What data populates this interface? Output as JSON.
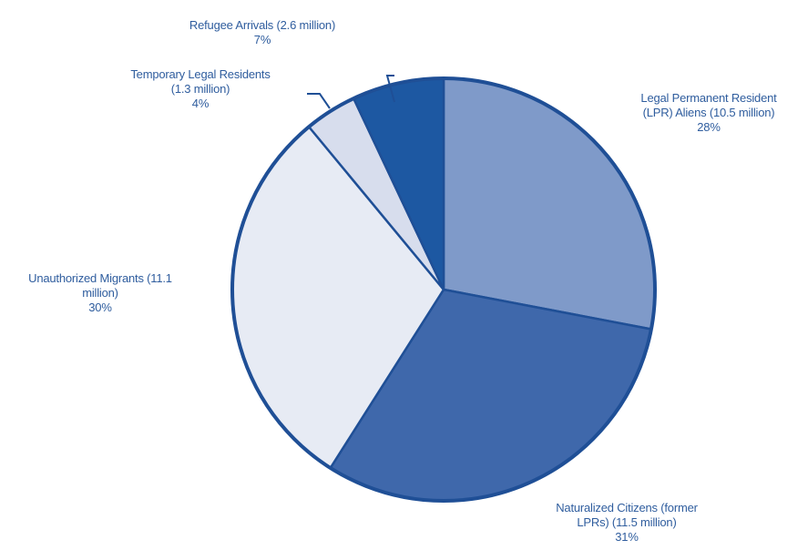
{
  "chart_data": {
    "type": "pie",
    "start_angle_deg": 0,
    "direction": "clockwise",
    "slices": [
      {
        "label": "Legal Permanent Resident (LPR) Aliens (10.5 million)",
        "amount_millions": 10.5,
        "percent": 28,
        "percent_label": "28%",
        "color": "#7f9ac9"
      },
      {
        "label": "Naturalized Citizens (former LPRs) (11.5 million)",
        "amount_millions": 11.5,
        "percent": 31,
        "percent_label": "31%",
        "color": "#3f68ab"
      },
      {
        "label": "Unauthorized Migrants (11.1 million)",
        "amount_millions": 11.1,
        "percent": 30,
        "percent_label": "30%",
        "color": "#e7ebf4"
      },
      {
        "label": "Temporary Legal Residents (1.3 million)",
        "amount_millions": 1.3,
        "percent": 4,
        "percent_label": "4%",
        "color": "#d7dded"
      },
      {
        "label": "Refugee Arrivals (2.6 million)",
        "amount_millions": 2.6,
        "percent": 7,
        "percent_label": "7%",
        "color": "#1d58a2"
      }
    ],
    "outline_color": "#1f4f96",
    "label_color": "#2f5d9e"
  },
  "labels": {
    "lpr": {
      "line1": "Legal Permanent Resident",
      "line2": "(LPR) Aliens (10.5 million)",
      "pct": "28%"
    },
    "naturalized": {
      "line1": "Naturalized Citizens (former",
      "line2": "LPRs) (11.5 million)",
      "pct": "31%"
    },
    "unauthorized": {
      "line1": "Unauthorized Migrants (11.1",
      "line2": "million)",
      "pct": "30%"
    },
    "temporary": {
      "line1": "Temporary Legal Residents",
      "line2": "(1.3 million)",
      "pct": "4%"
    },
    "refugee": {
      "line1": "Refugee Arrivals (2.6 million)",
      "pct": "7%"
    }
  }
}
